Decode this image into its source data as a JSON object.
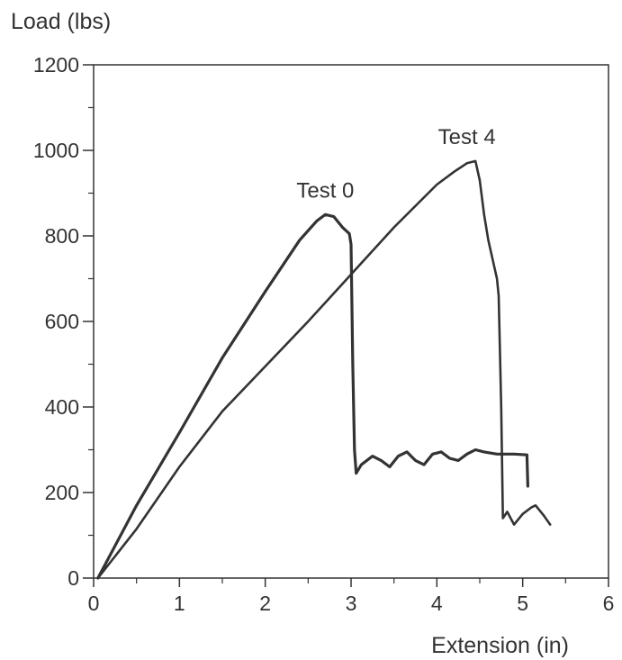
{
  "chart_data": {
    "type": "line",
    "title": "",
    "ylabel": "Load (lbs)",
    "xlabel": "Extension (in)",
    "xlim": [
      0,
      6
    ],
    "ylim": [
      0,
      1200
    ],
    "x_ticks": [
      0,
      1,
      2,
      3,
      4,
      5,
      6
    ],
    "y_ticks": [
      0,
      200,
      400,
      600,
      800,
      1000,
      1200
    ],
    "grid": false,
    "legend": "none",
    "series": [
      {
        "name": "Test 0",
        "color": "#333333",
        "points": [
          [
            0.05,
            0
          ],
          [
            0.5,
            170
          ],
          [
            1.0,
            340
          ],
          [
            1.5,
            515
          ],
          [
            2.0,
            670
          ],
          [
            2.4,
            790
          ],
          [
            2.6,
            835
          ],
          [
            2.7,
            850
          ],
          [
            2.8,
            845
          ],
          [
            2.9,
            820
          ],
          [
            2.98,
            805
          ],
          [
            3.0,
            780
          ],
          [
            3.02,
            500
          ],
          [
            3.04,
            300
          ],
          [
            3.06,
            245
          ],
          [
            3.12,
            265
          ],
          [
            3.25,
            285
          ],
          [
            3.35,
            275
          ],
          [
            3.45,
            260
          ],
          [
            3.55,
            285
          ],
          [
            3.65,
            295
          ],
          [
            3.75,
            275
          ],
          [
            3.85,
            265
          ],
          [
            3.95,
            290
          ],
          [
            4.05,
            295
          ],
          [
            4.15,
            280
          ],
          [
            4.25,
            275
          ],
          [
            4.35,
            290
          ],
          [
            4.45,
            300
          ],
          [
            4.55,
            295
          ],
          [
            4.7,
            290
          ],
          [
            4.9,
            290
          ],
          [
            5.05,
            288
          ],
          [
            5.06,
            215
          ]
        ]
      },
      {
        "name": "Test 4",
        "color": "#333333",
        "points": [
          [
            0.05,
            0
          ],
          [
            0.5,
            115
          ],
          [
            1.0,
            260
          ],
          [
            1.5,
            390
          ],
          [
            2.0,
            495
          ],
          [
            2.5,
            600
          ],
          [
            3.0,
            710
          ],
          [
            3.5,
            820
          ],
          [
            4.0,
            920
          ],
          [
            4.2,
            950
          ],
          [
            4.35,
            970
          ],
          [
            4.45,
            975
          ],
          [
            4.5,
            930
          ],
          [
            4.55,
            850
          ],
          [
            4.6,
            790
          ],
          [
            4.7,
            700
          ],
          [
            4.72,
            660
          ],
          [
            4.75,
            400
          ],
          [
            4.77,
            140
          ],
          [
            4.82,
            155
          ],
          [
            4.9,
            125
          ],
          [
            5.0,
            150
          ],
          [
            5.1,
            165
          ],
          [
            5.15,
            170
          ],
          [
            5.25,
            145
          ],
          [
            5.32,
            125
          ]
        ]
      }
    ],
    "annotations": [
      {
        "text": "Test 0",
        "x": 2.7,
        "y": 890
      },
      {
        "text": "Test 4",
        "x": 4.35,
        "y": 1015
      }
    ]
  }
}
